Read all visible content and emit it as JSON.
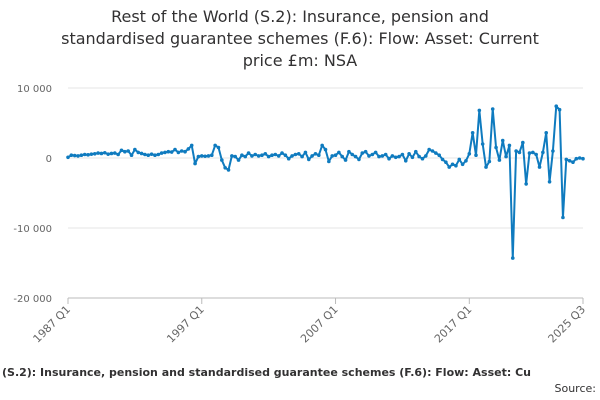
{
  "chart_data": {
    "type": "line",
    "title_lines": [
      "Rest of the World (S.2): Insurance, pension and",
      "standardised guarantee schemes (F.6): Flow: Asset: Current",
      "price £m: NSA"
    ],
    "xlabel": "",
    "ylabel": "",
    "ylim": [
      -20000,
      10000
    ],
    "y_ticks": [
      {
        "value": 10000,
        "label": "10 000"
      },
      {
        "value": 0,
        "label": "0"
      },
      {
        "value": -10000,
        "label": "-10 000"
      },
      {
        "value": -20000,
        "label": "-20 000"
      }
    ],
    "x_range": [
      "1987 Q1",
      "2025 Q3"
    ],
    "x_ticks": [
      "1987 Q1",
      "1997 Q1",
      "2007 Q1",
      "2017 Q1",
      "2025 Q3"
    ],
    "grid": "horizontal",
    "line_color": "#0f7bbf",
    "series": [
      {
        "name": "Rest of the World (S.2): Insurance, pension and standardised guarantee schemes (F.6): Flow: Asset: Current price £m: NSA",
        "values": [
          [
            "1987 Q1",
            100
          ],
          [
            "1987 Q2",
            400
          ],
          [
            "1987 Q3",
            350
          ],
          [
            "1987 Q4",
            300
          ],
          [
            "1988 Q1",
            400
          ],
          [
            "1988 Q2",
            500
          ],
          [
            "1988 Q3",
            450
          ],
          [
            "1988 Q4",
            550
          ],
          [
            "1989 Q1",
            600
          ],
          [
            "1989 Q2",
            700
          ],
          [
            "1989 Q3",
            650
          ],
          [
            "1989 Q4",
            750
          ],
          [
            "1990 Q1",
            550
          ],
          [
            "1990 Q2",
            650
          ],
          [
            "1990 Q3",
            700
          ],
          [
            "1990 Q4",
            500
          ],
          [
            "1991 Q1",
            1100
          ],
          [
            "1991 Q2",
            900
          ],
          [
            "1991 Q3",
            1000
          ],
          [
            "1991 Q4",
            400
          ],
          [
            "1992 Q1",
            1200
          ],
          [
            "1992 Q2",
            800
          ],
          [
            "1992 Q3",
            650
          ],
          [
            "1992 Q4",
            500
          ],
          [
            "1993 Q1",
            400
          ],
          [
            "1993 Q2",
            550
          ],
          [
            "1993 Q3",
            400
          ],
          [
            "1993 Q4",
            500
          ],
          [
            "1994 Q1",
            700
          ],
          [
            "1994 Q2",
            800
          ],
          [
            "1994 Q3",
            900
          ],
          [
            "1994 Q4",
            850
          ],
          [
            "1995 Q1",
            1200
          ],
          [
            "1995 Q2",
            800
          ],
          [
            "1995 Q3",
            1000
          ],
          [
            "1995 Q4",
            900
          ],
          [
            "1996 Q1",
            1300
          ],
          [
            "1996 Q2",
            1800
          ],
          [
            "1996 Q3",
            -800
          ],
          [
            "1996 Q4",
            200
          ],
          [
            "1997 Q1",
            300
          ],
          [
            "1997 Q2",
            250
          ],
          [
            "1997 Q3",
            300
          ],
          [
            "1997 Q4",
            400
          ],
          [
            "1998 Q1",
            1800
          ],
          [
            "1998 Q2",
            1500
          ],
          [
            "1998 Q3",
            -300
          ],
          [
            "1998 Q4",
            -1400
          ],
          [
            "1999 Q1",
            -1700
          ],
          [
            "1999 Q2",
            300
          ],
          [
            "1999 Q3",
            200
          ],
          [
            "1999 Q4",
            -300
          ],
          [
            "2000 Q1",
            400
          ],
          [
            "2000 Q2",
            200
          ],
          [
            "2000 Q3",
            700
          ],
          [
            "2000 Q4",
            300
          ],
          [
            "2001 Q1",
            500
          ],
          [
            "2001 Q2",
            300
          ],
          [
            "2001 Q3",
            400
          ],
          [
            "2001 Q4",
            600
          ],
          [
            "2002 Q1",
            200
          ],
          [
            "2002 Q2",
            400
          ],
          [
            "2002 Q3",
            500
          ],
          [
            "2002 Q4",
            300
          ],
          [
            "2003 Q1",
            700
          ],
          [
            "2003 Q2",
            400
          ],
          [
            "2003 Q3",
            -100
          ],
          [
            "2003 Q4",
            300
          ],
          [
            "2004 Q1",
            500
          ],
          [
            "2004 Q2",
            600
          ],
          [
            "2004 Q3",
            200
          ],
          [
            "2004 Q4",
            800
          ],
          [
            "2005 Q1",
            -200
          ],
          [
            "2005 Q2",
            300
          ],
          [
            "2005 Q3",
            600
          ],
          [
            "2005 Q4",
            400
          ],
          [
            "2006 Q1",
            1800
          ],
          [
            "2006 Q2",
            1200
          ],
          [
            "2006 Q3",
            -500
          ],
          [
            "2006 Q4",
            300
          ],
          [
            "2007 Q1",
            400
          ],
          [
            "2007 Q2",
            800
          ],
          [
            "2007 Q3",
            200
          ],
          [
            "2007 Q4",
            -300
          ],
          [
            "2008 Q1",
            900
          ],
          [
            "2008 Q2",
            500
          ],
          [
            "2008 Q3",
            200
          ],
          [
            "2008 Q4",
            -200
          ],
          [
            "2009 Q1",
            700
          ],
          [
            "2009 Q2",
            900
          ],
          [
            "2009 Q3",
            300
          ],
          [
            "2009 Q4",
            500
          ],
          [
            "2010 Q1",
            800
          ],
          [
            "2010 Q2",
            200
          ],
          [
            "2010 Q3",
            300
          ],
          [
            "2010 Q4",
            500
          ],
          [
            "2011 Q1",
            -100
          ],
          [
            "2011 Q2",
            300
          ],
          [
            "2011 Q3",
            100
          ],
          [
            "2011 Q4",
            200
          ],
          [
            "2012 Q1",
            500
          ],
          [
            "2012 Q2",
            -400
          ],
          [
            "2012 Q3",
            600
          ],
          [
            "2012 Q4",
            100
          ],
          [
            "2013 Q1",
            900
          ],
          [
            "2013 Q2",
            200
          ],
          [
            "2013 Q3",
            -100
          ],
          [
            "2013 Q4",
            300
          ],
          [
            "2014 Q1",
            1200
          ],
          [
            "2014 Q2",
            1000
          ],
          [
            "2014 Q3",
            700
          ],
          [
            "2014 Q4",
            400
          ],
          [
            "2015 Q1",
            -200
          ],
          [
            "2015 Q2",
            -600
          ],
          [
            "2015 Q3",
            -1300
          ],
          [
            "2015 Q4",
            -900
          ],
          [
            "2016 Q1",
            -1100
          ],
          [
            "2016 Q2",
            -200
          ],
          [
            "2016 Q3",
            -900
          ],
          [
            "2016 Q4",
            -400
          ],
          [
            "2017 Q1",
            600
          ],
          [
            "2017 Q2",
            3600
          ],
          [
            "2017 Q3",
            400
          ],
          [
            "2017 Q4",
            6800
          ],
          [
            "2018 Q1",
            2000
          ],
          [
            "2018 Q2",
            -1300
          ],
          [
            "2018 Q3",
            -500
          ],
          [
            "2018 Q4",
            7000
          ],
          [
            "2019 Q1",
            1500
          ],
          [
            "2019 Q2",
            -300
          ],
          [
            "2019 Q3",
            2500
          ],
          [
            "2019 Q4",
            200
          ],
          [
            "2020 Q1",
            1800
          ],
          [
            "2020 Q2",
            -14300
          ],
          [
            "2020 Q3",
            1000
          ],
          [
            "2020 Q4",
            800
          ],
          [
            "2021 Q1",
            2200
          ],
          [
            "2021 Q2",
            -3700
          ],
          [
            "2021 Q3",
            700
          ],
          [
            "2021 Q4",
            800
          ],
          [
            "2022 Q1",
            500
          ],
          [
            "2022 Q2",
            -1300
          ],
          [
            "2022 Q3",
            800
          ],
          [
            "2022 Q4",
            3600
          ],
          [
            "2023 Q1",
            -3400
          ],
          [
            "2023 Q2",
            1000
          ],
          [
            "2023 Q3",
            7400
          ],
          [
            "2023 Q4",
            6900
          ],
          [
            "2024 Q1",
            -8500
          ],
          [
            "2024 Q2",
            -200
          ],
          [
            "2024 Q3",
            -400
          ],
          [
            "2024 Q4",
            -600
          ],
          [
            "2025 Q1",
            -100
          ],
          [
            "2025 Q2",
            0
          ],
          [
            "2025 Q3",
            -100
          ]
        ]
      }
    ]
  },
  "footer": {
    "series_title": "(S.2): Insurance, pension and standardised guarantee schemes (F.6): Flow: Asset: Cu",
    "source_label": "Source:"
  }
}
